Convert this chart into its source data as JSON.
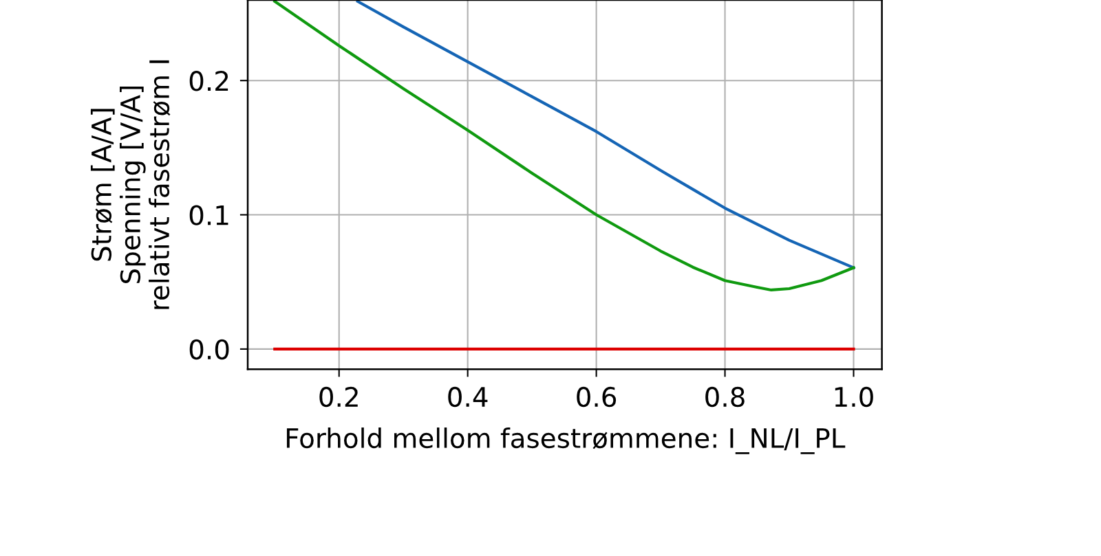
{
  "chart_data": {
    "type": "line",
    "xlabel": "Forhold mellom fasestrømmene: I_NL/I_PL",
    "ylabel": "Strøm [A/A]\nSpenning [V/A]\nrelativt fasestrøm I",
    "xlim": [
      0.058,
      1.044
    ],
    "ylim": [
      -0.015,
      0.26
    ],
    "xticks": [
      0.2,
      0.4,
      0.6,
      0.8,
      {
        "value": 1.0,
        "label": "1.0"
      }
    ],
    "yticks": [
      {
        "value": 0.0,
        "label": "0.0"
      },
      0.1,
      0.2
    ],
    "grid": true,
    "line_style": "solid",
    "marker": "none",
    "series": [
      {
        "color": "#1565b5",
        "x": [
          0.229,
          0.3,
          0.4,
          0.5,
          0.6,
          0.7,
          0.8,
          0.9,
          1.0
        ],
        "values": [
          0.259,
          0.24,
          0.214,
          0.188,
          0.162,
          0.133,
          0.105,
          0.081,
          0.0606
        ]
      },
      {
        "color": "#109a10",
        "x": [
          0.1,
          0.2,
          0.3,
          0.4,
          0.5,
          0.6,
          0.7,
          0.75,
          0.8,
          0.85,
          0.872,
          0.9,
          0.95,
          1.0
        ],
        "values": [
          0.259,
          0.226,
          0.194,
          0.163,
          0.131,
          0.1,
          0.073,
          0.061,
          0.051,
          0.046,
          0.044,
          0.045,
          0.051,
          0.0606
        ]
      },
      {
        "color": "#dd0000",
        "x": [
          0.1,
          1.0
        ],
        "values": [
          0.0,
          0.0
        ]
      }
    ]
  }
}
